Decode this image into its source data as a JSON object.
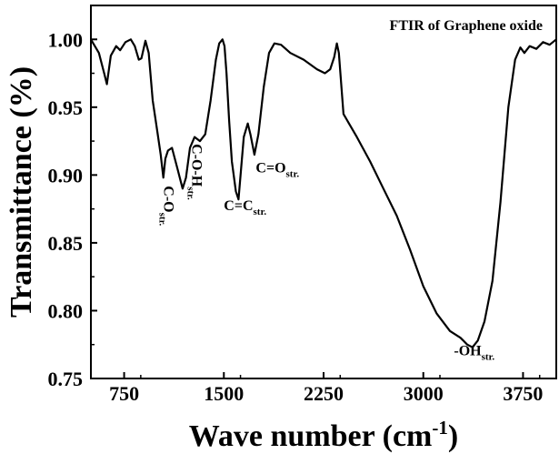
{
  "chart_data": {
    "type": "line",
    "title": "FTIR of Graphene oxide",
    "xlabel": "Wave number (cm",
    "xlabel_sup": "-1",
    "xlabel_tail": ")",
    "ylabel": "Transmittance (%)",
    "xlim": [
      500,
      4000
    ],
    "ylim": [
      0.75,
      1.025
    ],
    "x_ticks": [
      750,
      1500,
      2250,
      3000,
      3750
    ],
    "y_ticks": [
      0.75,
      0.8,
      0.85,
      0.9,
      0.95,
      1.0
    ],
    "grid": false,
    "legend": "none",
    "line_color": "#000000",
    "series": [
      {
        "x": [
          500,
          560,
          600,
          620,
          650,
          690,
          720,
          760,
          800,
          830,
          860,
          880,
          910,
          935,
          965,
          1000,
          1025,
          1045,
          1060,
          1080,
          1110,
          1150,
          1190,
          1215,
          1245,
          1280,
          1320,
          1360,
          1400,
          1440,
          1465,
          1490,
          1505,
          1520,
          1540,
          1560,
          1590,
          1610,
          1630,
          1650,
          1680,
          1700,
          1730,
          1760,
          1800,
          1840,
          1880,
          1930,
          2000,
          2100,
          2200,
          2260,
          2300,
          2330,
          2350,
          2365,
          2400,
          2500,
          2600,
          2700,
          2800,
          2900,
          3000,
          3100,
          3200,
          3280,
          3330,
          3370,
          3410,
          3460,
          3520,
          3580,
          3640,
          3690,
          3730,
          3760,
          3800,
          3850,
          3900,
          3950,
          4000
        ],
        "y": [
          1.0,
          0.99,
          0.975,
          0.967,
          0.988,
          0.995,
          0.992,
          0.998,
          1.0,
          0.995,
          0.985,
          0.986,
          0.999,
          0.99,
          0.955,
          0.932,
          0.915,
          0.898,
          0.912,
          0.918,
          0.92,
          0.905,
          0.89,
          0.898,
          0.92,
          0.928,
          0.925,
          0.93,
          0.955,
          0.985,
          0.997,
          1.0,
          0.995,
          0.975,
          0.94,
          0.91,
          0.888,
          0.882,
          0.905,
          0.928,
          0.938,
          0.93,
          0.915,
          0.93,
          0.965,
          0.99,
          0.997,
          0.996,
          0.99,
          0.985,
          0.978,
          0.975,
          0.978,
          0.987,
          0.997,
          0.99,
          0.945,
          0.928,
          0.91,
          0.89,
          0.87,
          0.845,
          0.818,
          0.798,
          0.785,
          0.78,
          0.775,
          0.773,
          0.778,
          0.792,
          0.822,
          0.88,
          0.95,
          0.985,
          0.994,
          0.99,
          0.995,
          0.993,
          0.998,
          0.996,
          1.0
        ]
      }
    ],
    "annotations": [
      {
        "main": "C-O",
        "sub": "str.",
        "x": 1050,
        "y": 0.892,
        "vertical": true
      },
      {
        "main": "C-O-H",
        "sub": "str.",
        "x": 1262,
        "y": 0.923,
        "vertical": true
      },
      {
        "main": "C=C",
        "sub": "str.",
        "x": 1500,
        "y": 0.874,
        "vertical": false
      },
      {
        "main": "C=O",
        "sub": "str.",
        "x": 1740,
        "y": 0.902,
        "vertical": false
      },
      {
        "main": "-OH",
        "sub": "str.",
        "x": 3230,
        "y": 0.767,
        "vertical": false
      }
    ]
  }
}
